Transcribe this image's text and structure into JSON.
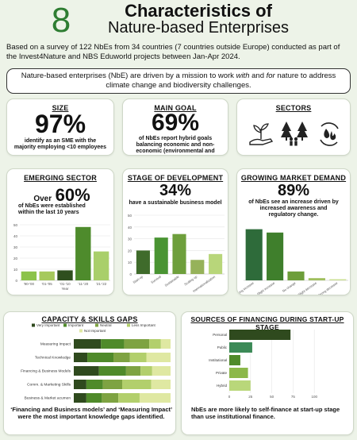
{
  "header": {
    "logo_glyph": "8",
    "title_line1": "Characteristics of",
    "title_line2": "Nature-based Enterprises",
    "intro": "Based on a survey of  122 NbEs from 34 countries (7 countries outside Europe) conducted as part of the Invest4Nature and NBS Eduworld projects between Jan-Apr 2024."
  },
  "definition": {
    "before": "Nature-based enterprises (NbE) are driven by a mission to work ",
    "with": "with",
    "middle": " and ",
    "for": "for",
    "after": " nature to address climate change and biodiversity challenges."
  },
  "size": {
    "heading": "SIZE",
    "value": "97%",
    "text": "identify as an SME with the majority employing <10 employees"
  },
  "main_goal": {
    "heading": "MAIN GOAL",
    "value": "69%",
    "text": "of NbEs report hybrid goals balancing economic and non-economic (environmental and social) goals"
  },
  "sectors": {
    "heading": "SECTORS",
    "icons": [
      "plant-hand-icon",
      "forest-people-icon",
      "water-fire-icon"
    ]
  },
  "emerging": {
    "heading": "EMERGING SECTOR",
    "over": "Over",
    "value": "60%",
    "text": "of NbEs were established within the last 10 years"
  },
  "stage": {
    "heading": "STAGE OF DEVELOPMENT",
    "value": "34%",
    "text": "have a sustainable business model"
  },
  "market": {
    "heading": "GROWING MARKET DEMAND",
    "value": "89%",
    "text": "of NbEs see an increase driven by increased awareness and regulatory change."
  },
  "capacity": {
    "heading": "CAPACITY & SKILLS GAPS",
    "caption_q1": "‘Financing and Business models’",
    "caption_and": " and ",
    "caption_q2": "‘Measuring Impact’",
    "caption_rest": " were the most important knowledge gaps identified."
  },
  "financing": {
    "heading": "SOURCES OF FINANCING DURING START-UP STAGE",
    "caption": "NbEs are more likely to self-finance at start-up stage than use institutional finance."
  },
  "chart_data": [
    {
      "id": "year-established",
      "type": "bar",
      "categories": [
        "'90-'00",
        "'01-'05",
        "'01-'10",
        "'11-'20",
        "'21-'22"
      ],
      "values": [
        8,
        8,
        9,
        48,
        26
      ],
      "xlabel": "Year",
      "ylabel": "",
      "ylim": [
        0,
        50
      ],
      "yticks": [
        0,
        10,
        20,
        30,
        40,
        50
      ],
      "colors": [
        "#8cc34a",
        "#a6c95c",
        "#2f4f1e",
        "#4e8b2c",
        "#a9cf6a"
      ]
    },
    {
      "id": "stage-of-development",
      "type": "bar",
      "categories": [
        "Start-up",
        "Survival",
        "Sustainable",
        "Scaling up",
        "Internationalization"
      ],
      "values": [
        20,
        31,
        34,
        12,
        17
      ],
      "ylim": [
        0,
        50
      ],
      "yticks": [
        0,
        10,
        20,
        30,
        40,
        50
      ],
      "colors": [
        "#3f6b2b",
        "#4a9433",
        "#6e9f3c",
        "#96b25a",
        "#b8d67a"
      ]
    },
    {
      "id": "market-demand",
      "type": "bar",
      "categories": [
        "Strong increase",
        "Slight increase",
        "No change",
        "Slight decrease",
        "Strong decrease"
      ],
      "values": [
        46,
        43,
        8,
        2,
        1
      ],
      "ylim": [
        0,
        50
      ],
      "colors": [
        "#2e6b3a",
        "#3f7f2c",
        "#6d9e3a",
        "#a0bf5e",
        "#c9de8f"
      ]
    },
    {
      "id": "capacity-gaps",
      "type": "bar",
      "orientation": "horizontal-stacked-100",
      "categories": [
        "Measuring Impact",
        "Technical Knowledge",
        "Financing & Business Models",
        "Comm. & Marketing Skills",
        "Business & Market acumen"
      ],
      "series": [
        {
          "name": "Very Important",
          "values": [
            28,
            14,
            26,
            13,
            13
          ],
          "color": "#2f4a1e"
        },
        {
          "name": "Important",
          "values": [
            24,
            27,
            28,
            17,
            16
          ],
          "color": "#4f8a2a"
        },
        {
          "name": "Neutral",
          "values": [
            26,
            17,
            15,
            20,
            17
          ],
          "color": "#7ea342"
        },
        {
          "name": "Less Important",
          "values": [
            12,
            17,
            12,
            30,
            22
          ],
          "color": "#b2cf6c"
        },
        {
          "name": "Not Important",
          "values": [
            10,
            25,
            19,
            20,
            32
          ],
          "color": "#dfe8a2"
        }
      ],
      "xlim": [
        0,
        100
      ]
    },
    {
      "id": "financing-sources",
      "type": "bar",
      "orientation": "horizontal",
      "categories": [
        "Personal",
        "Public",
        "Institutional",
        "Private",
        "Hybrid"
      ],
      "values": [
        72,
        27,
        13,
        22,
        25
      ],
      "xlim": [
        0,
        125
      ],
      "xticks": [
        0,
        25,
        50,
        75,
        100
      ],
      "colors": [
        "#2f4a1e",
        "#3c8a57",
        "#4f8a2a",
        "#8cb84a",
        "#b9d77a"
      ]
    }
  ]
}
